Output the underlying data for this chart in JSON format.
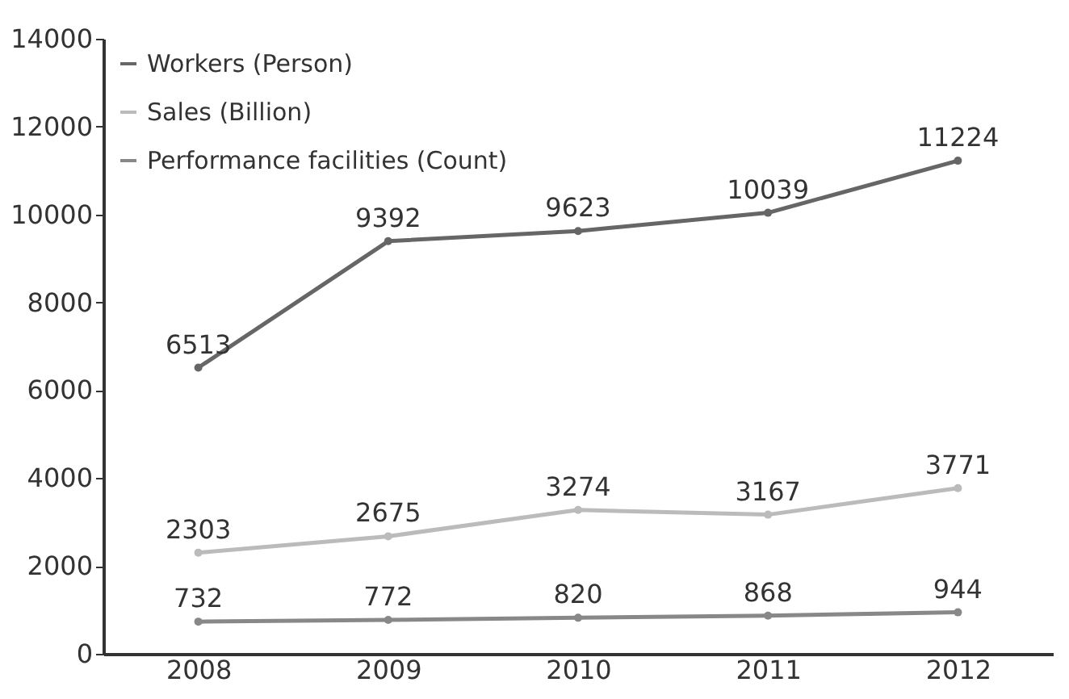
{
  "chart_data": {
    "type": "line",
    "categories": [
      "2008",
      "2009",
      "2010",
      "2011",
      "2012"
    ],
    "series": [
      {
        "name": "Workers (Person)",
        "color": "#666666",
        "values": [
          6513,
          9392,
          9623,
          10039,
          11224
        ]
      },
      {
        "name": "Sales (Billion)",
        "color": "#bbbbbb",
        "values": [
          2303,
          2675,
          3274,
          3167,
          3771
        ]
      },
      {
        "name": "Performance facilities (Count)",
        "color": "#888888",
        "values": [
          732,
          772,
          820,
          868,
          944
        ]
      }
    ],
    "ylim": [
      0,
      14000
    ],
    "yticks": [
      0,
      2000,
      4000,
      6000,
      8000,
      10000,
      12000,
      14000
    ],
    "grid": false,
    "legend": "top left",
    "marker": "circle",
    "line_style": "solid",
    "data_labels": true
  }
}
